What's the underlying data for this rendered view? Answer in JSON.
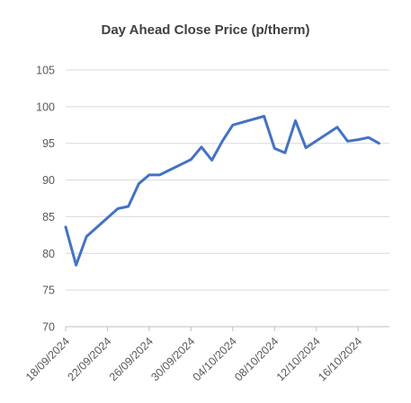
{
  "chart_data": {
    "type": "line",
    "title": "Day Ahead Close Price (p/therm)",
    "xlabel": "",
    "ylabel": "",
    "ylim": [
      70,
      105
    ],
    "y_ticks": [
      "70",
      "75",
      "80",
      "85",
      "90",
      "95",
      "100",
      "105"
    ],
    "x_ticks": [
      "18/09/2024",
      "22/09/2024",
      "26/09/2024",
      "30/09/2024",
      "04/10/2024",
      "08/10/2024",
      "12/10/2024",
      "16/10/2024"
    ],
    "grid": "horizontal",
    "colors": {
      "line": "#4472C4",
      "grid": "#d9d9d9",
      "axis": "#bfbfbf",
      "text": "#595959"
    },
    "series": [
      {
        "x": [
          "2024-09-18",
          "2024-09-19",
          "2024-09-20",
          "2024-09-23",
          "2024-09-24",
          "2024-09-25",
          "2024-09-26",
          "2024-09-27",
          "2024-09-30",
          "2024-10-01",
          "2024-10-02",
          "2024-10-03",
          "2024-10-04",
          "2024-10-07",
          "2024-10-08",
          "2024-10-09",
          "2024-10-10",
          "2024-10-11",
          "2024-10-14",
          "2024-10-15",
          "2024-10-16",
          "2024-10-17",
          "2024-10-18"
        ],
        "values": [
          83.6,
          78.4,
          82.3,
          86.1,
          86.4,
          89.5,
          90.7,
          90.7,
          92.8,
          94.5,
          92.7,
          95.3,
          97.5,
          98.7,
          94.3,
          93.7,
          98.1,
          94.4,
          97.2,
          95.3,
          95.5,
          95.8,
          95.0
        ]
      }
    ]
  }
}
